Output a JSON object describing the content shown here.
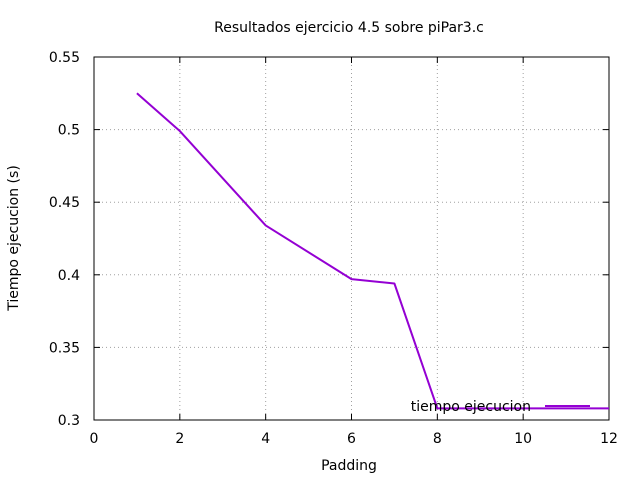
{
  "chart_data": {
    "type": "line",
    "title": "Resultados ejercicio 4.5 sobre piPar3.c",
    "xlabel": "Padding",
    "ylabel": "Tiempo ejecucion (s)",
    "xlim": [
      0,
      12
    ],
    "ylim": [
      0.3,
      0.55
    ],
    "xticks": [
      "0",
      "2",
      "4",
      "6",
      "8",
      "10",
      "12"
    ],
    "yticks": [
      "0.3",
      "0.35",
      "0.4",
      "0.45",
      "0.5",
      "0.55"
    ],
    "grid": true,
    "legend_position": "bottom-right",
    "series": [
      {
        "name": "tiempo ejecucion",
        "color": "#9400d3",
        "x": [
          1,
          2,
          4,
          6,
          7,
          8,
          12
        ],
        "y": [
          0.525,
          0.499,
          0.434,
          0.397,
          0.394,
          0.308,
          0.308
        ]
      }
    ]
  }
}
